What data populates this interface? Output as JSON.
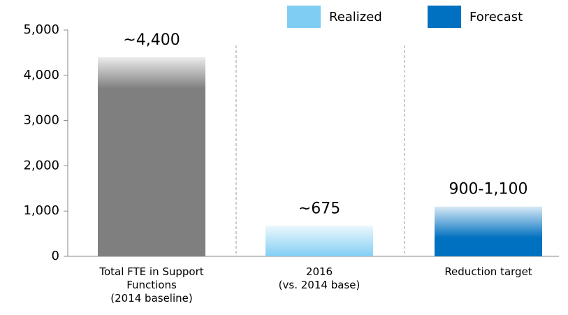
{
  "chart_data": {
    "type": "bar",
    "categories": [
      "Total FTE in Support\nFunctions\n(2014 baseline)",
      "2016\n(vs. 2014 base)",
      "Reduction target"
    ],
    "values": [
      4400,
      675,
      1100
    ],
    "value_labels": [
      "~4,400",
      "~675",
      "900-1,100"
    ],
    "colors": [
      "#7f7f7f",
      "#7fcdf3",
      "#0070c0"
    ],
    "legend": [
      {
        "name": "Realized",
        "color": "#7fcdf3"
      },
      {
        "name": "Forecast",
        "color": "#0070c0"
      }
    ],
    "ylim": [
      0,
      5000
    ],
    "yticks": [
      0,
      {
        "value": 1000,
        "label": "1,000"
      },
      {
        "value": 2000,
        "label": "2,000"
      },
      {
        "value": 3000,
        "label": "3,000"
      },
      {
        "value": 4000,
        "label": "4,000"
      },
      {
        "value": 5000,
        "label": "5,000"
      }
    ]
  }
}
